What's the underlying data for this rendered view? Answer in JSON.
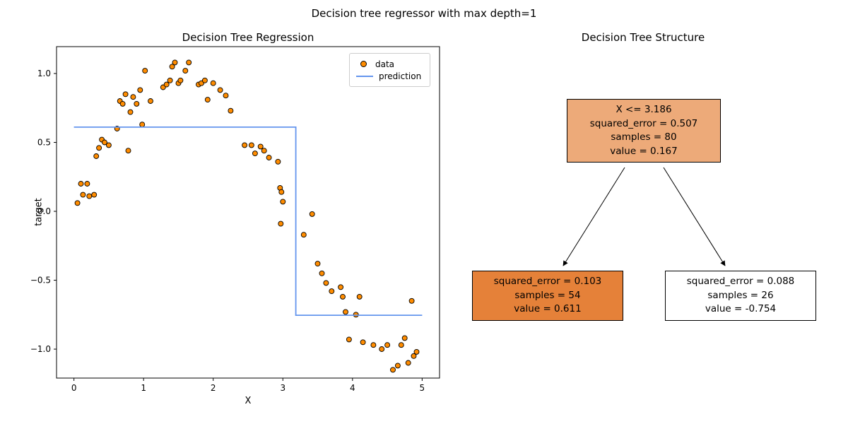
{
  "figure": {
    "title": "Decision tree regressor with max depth=1"
  },
  "chart_data": [
    {
      "type": "scatter",
      "title": "Decision Tree Regression",
      "xlabel": "X",
      "ylabel": "target",
      "xlim": [
        -0.25,
        5.25
      ],
      "ylim": [
        -1.21,
        1.195
      ],
      "xticks": [
        0,
        1,
        2,
        3,
        4,
        5
      ],
      "xtick_labels": [
        "0",
        "1",
        "2",
        "3",
        "4",
        "5"
      ],
      "yticks": [
        -1.0,
        -0.5,
        0.0,
        0.5,
        1.0
      ],
      "ytick_labels": [
        "−1.0",
        "−0.5",
        "0.0",
        "0.5",
        "1.0"
      ],
      "grid": false,
      "legend_position": "upper right",
      "series": [
        {
          "name": "data",
          "type": "scatter",
          "color": "#ff8c00",
          "edge_color": "#000000",
          "points": [
            [
              0.05,
              0.06
            ],
            [
              0.1,
              0.2
            ],
            [
              0.13,
              0.12
            ],
            [
              0.19,
              0.2
            ],
            [
              0.22,
              0.11
            ],
            [
              0.29,
              0.12
            ],
            [
              0.32,
              0.4
            ],
            [
              0.36,
              0.46
            ],
            [
              0.4,
              0.52
            ],
            [
              0.44,
              0.5
            ],
            [
              0.5,
              0.48
            ],
            [
              0.62,
              0.6
            ],
            [
              0.66,
              0.8
            ],
            [
              0.7,
              0.78
            ],
            [
              0.74,
              0.85
            ],
            [
              0.78,
              0.44
            ],
            [
              0.81,
              0.72
            ],
            [
              0.85,
              0.83
            ],
            [
              0.9,
              0.78
            ],
            [
              0.95,
              0.88
            ],
            [
              0.98,
              0.63
            ],
            [
              1.02,
              1.02
            ],
            [
              1.1,
              0.8
            ],
            [
              1.28,
              0.9
            ],
            [
              1.33,
              0.92
            ],
            [
              1.38,
              0.95
            ],
            [
              1.41,
              1.05
            ],
            [
              1.45,
              1.08
            ],
            [
              1.5,
              0.93
            ],
            [
              1.53,
              0.95
            ],
            [
              1.6,
              1.02
            ],
            [
              1.65,
              1.08
            ],
            [
              1.79,
              0.92
            ],
            [
              1.83,
              0.93
            ],
            [
              1.88,
              0.95
            ],
            [
              1.92,
              0.81
            ],
            [
              2.0,
              0.93
            ],
            [
              2.1,
              0.88
            ],
            [
              2.18,
              0.84
            ],
            [
              2.25,
              0.73
            ],
            [
              2.45,
              0.48
            ],
            [
              2.55,
              0.48
            ],
            [
              2.6,
              0.42
            ],
            [
              2.68,
              0.47
            ],
            [
              2.73,
              0.44
            ],
            [
              2.8,
              0.39
            ],
            [
              2.93,
              0.36
            ],
            [
              2.96,
              0.17
            ],
            [
              2.98,
              0.14
            ],
            [
              3.0,
              0.07
            ],
            [
              2.97,
              -0.09
            ],
            [
              3.3,
              -0.17
            ],
            [
              3.42,
              -0.02
            ],
            [
              3.5,
              -0.38
            ],
            [
              3.56,
              -0.45
            ],
            [
              3.62,
              -0.52
            ],
            [
              3.7,
              -0.58
            ],
            [
              3.83,
              -0.55
            ],
            [
              3.86,
              -0.62
            ],
            [
              3.9,
              -0.73
            ],
            [
              3.95,
              -0.93
            ],
            [
              4.05,
              -0.75
            ],
            [
              4.1,
              -0.62
            ],
            [
              4.15,
              -0.95
            ],
            [
              4.3,
              -0.97
            ],
            [
              4.42,
              -1.0
            ],
            [
              4.5,
              -0.97
            ],
            [
              4.58,
              -1.15
            ],
            [
              4.65,
              -1.12
            ],
            [
              4.7,
              -0.97
            ],
            [
              4.75,
              -0.92
            ],
            [
              4.8,
              -1.1
            ],
            [
              4.85,
              -0.65
            ],
            [
              4.88,
              -1.05
            ],
            [
              4.92,
              -1.02
            ]
          ]
        },
        {
          "name": "prediction",
          "type": "line",
          "color": "#6495ed",
          "points": [
            [
              0.0,
              0.611
            ],
            [
              3.186,
              0.611
            ],
            [
              3.186,
              -0.754
            ],
            [
              5.0,
              -0.754
            ]
          ]
        }
      ]
    },
    {
      "type": "tree",
      "title": "Decision Tree Structure",
      "split_threshold": 3.186,
      "nodes": [
        {
          "id": "root",
          "lines": [
            "X <= 3.186",
            "squared_error = 0.507",
            "samples = 80",
            "value = 0.167"
          ],
          "fill": "#edaa79"
        },
        {
          "id": "left",
          "lines": [
            "squared_error = 0.103",
            "samples = 54",
            "value = 0.611"
          ],
          "fill": "#e58139"
        },
        {
          "id": "right",
          "lines": [
            "squared_error = 0.088",
            "samples = 26",
            "value = -0.754"
          ],
          "fill": "#ffffff"
        }
      ],
      "edges": [
        [
          "root",
          "left"
        ],
        [
          "root",
          "right"
        ]
      ]
    }
  ]
}
